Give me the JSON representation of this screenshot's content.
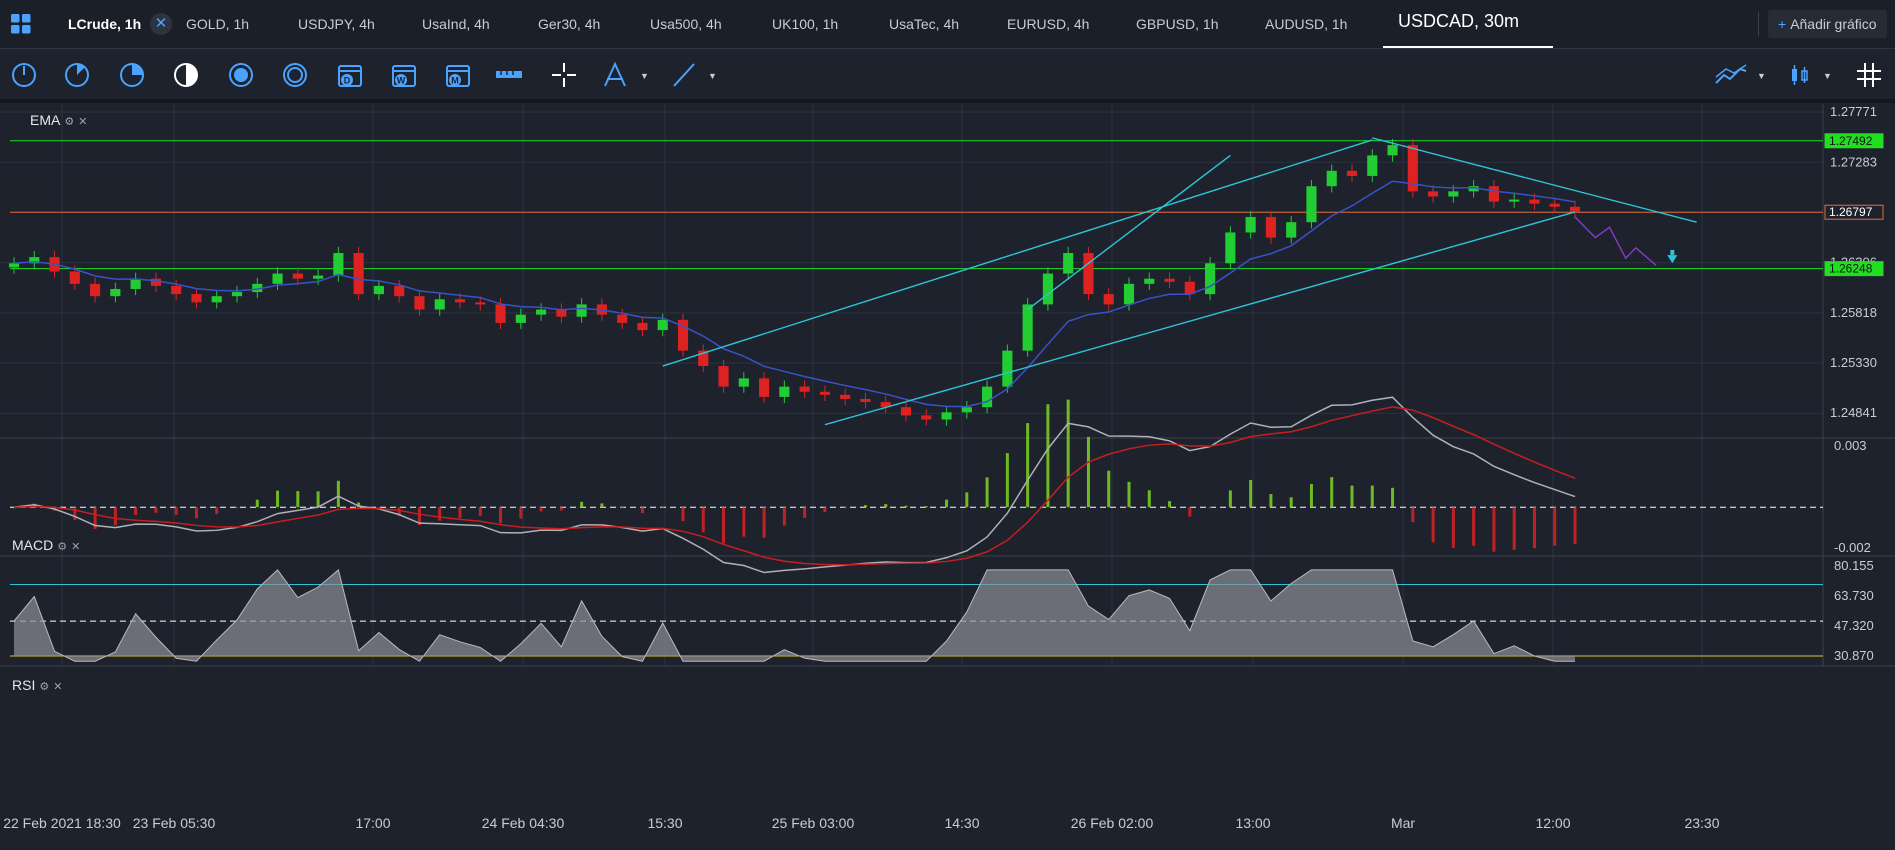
{
  "tabs": [
    {
      "label": "LCrude, 1h"
    },
    {
      "label": "GOLD, 1h"
    },
    {
      "label": "USDJPY, 4h"
    },
    {
      "label": "UsaInd, 4h"
    },
    {
      "label": "Ger30, 4h"
    },
    {
      "label": "Usa500, 4h"
    },
    {
      "label": "UK100, 1h"
    },
    {
      "label": "UsaTec, 4h"
    },
    {
      "label": "EURUSD, 4h"
    },
    {
      "label": "GBPUSD, 1h"
    },
    {
      "label": "AUDUSD, 1h"
    },
    {
      "label": "USDCAD, 30m"
    }
  ],
  "active_tab": "USDCAD, 30m",
  "add_chart_label": "Añadir gráfico",
  "toolbar_icons": [
    "crosshair-circle-icon",
    "pie-quarter-icon",
    "pie-half-icon",
    "contrast-icon",
    "hourly-circle-icon",
    "four-hour-circle-icon",
    "daily-calendar-icon",
    "weekly-calendar-icon",
    "monthly-calendar-icon",
    "ruler-icon",
    "crosshair-icon",
    "fib-tool-icon",
    "trendline-icon"
  ],
  "toolbar_letters": {
    "daily": "D",
    "weekly": "W",
    "monthly": "M",
    "hourly": "1h",
    "fourhour": "4h"
  },
  "indicators": {
    "ema": "EMA",
    "macd": "MACD",
    "rsi": "RSI"
  },
  "chart_data": [
    {
      "type": "candlestick",
      "symbol": "USDCAD, 30m",
      "indicator": "EMA",
      "ylim": [
        1.246,
        1.2785
      ],
      "y_ticks": [
        "1.27771",
        "1.27283",
        "1.26306",
        "1.25818",
        "1.25330",
        "1.24841"
      ],
      "price_levels": [
        {
          "value": "1.27492",
          "color": "#22dd22"
        },
        {
          "value": "1.26797",
          "color": "#e07040"
        },
        {
          "value": "1.26248",
          "color": "#22dd22"
        }
      ],
      "x_ticks": [
        "22 Feb 2021 18:30",
        "23 Feb 05:30",
        "17:00",
        "24 Feb 04:30",
        "15:30",
        "25 Feb 03:00",
        "14:30",
        "26 Feb 02:00",
        "13:00",
        "Mar",
        "12:00",
        "23:30"
      ],
      "close_path": [
        1.263,
        1.2636,
        1.2622,
        1.261,
        1.2598,
        1.2605,
        1.2615,
        1.2608,
        1.26,
        1.2592,
        1.2598,
        1.2602,
        1.261,
        1.262,
        1.2615,
        1.2618,
        1.264,
        1.26,
        1.2608,
        1.2598,
        1.2585,
        1.2595,
        1.2592,
        1.259,
        1.2572,
        1.258,
        1.2585,
        1.2578,
        1.259,
        1.258,
        1.2572,
        1.2565,
        1.2575,
        1.2545,
        1.253,
        1.251,
        1.2518,
        1.25,
        1.251,
        1.2505,
        1.2502,
        1.2498,
        1.2495,
        1.249,
        1.2482,
        1.2478,
        1.2485,
        1.249,
        1.251,
        1.2545,
        1.259,
        1.262,
        1.264,
        1.26,
        1.259,
        1.261,
        1.2615,
        1.2612,
        1.26,
        1.263,
        1.266,
        1.2675,
        1.2655,
        1.267,
        1.2705,
        1.272,
        1.2715,
        1.2735,
        1.2745,
        1.27,
        1.2695,
        1.27,
        1.2705,
        1.269,
        1.2692,
        1.2688,
        1.2685,
        1.268
      ],
      "ema_color": "#3a52c8",
      "channel_color": "#2ec4d6"
    },
    {
      "type": "macd",
      "indicator": "MACD",
      "y_ticks": [
        "0.003",
        "-0.002"
      ],
      "ylim": [
        -0.002,
        0.003
      ]
    },
    {
      "type": "rsi",
      "indicator": "RSI",
      "y_ticks": [
        "80.155",
        "63.730",
        "47.320",
        "30.870"
      ],
      "ylim": [
        30.87,
        80.155
      ]
    }
  ]
}
